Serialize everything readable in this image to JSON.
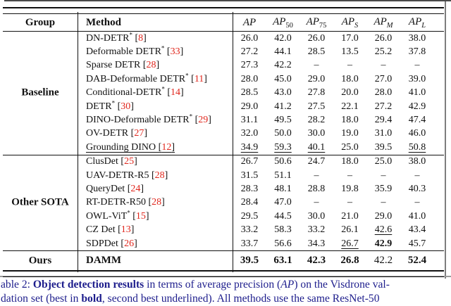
{
  "colors": {
    "rule": "#111111",
    "frame_gray": "#7d7d7d",
    "citation_red": "#e0261c",
    "caption_blue": "#1d1d8c",
    "text": "#111111"
  },
  "table": {
    "header": {
      "group": "Group",
      "method": "Method",
      "metrics": [
        {
          "label": "AP",
          "sub": ""
        },
        {
          "label": "AP",
          "sub": "50"
        },
        {
          "label": "AP",
          "sub": "75"
        },
        {
          "label": "AP",
          "sub": "S"
        },
        {
          "label": "AP",
          "sub": "M"
        },
        {
          "label": "AP",
          "sub": "L"
        }
      ]
    },
    "missing_value": "–",
    "sections": [
      {
        "group": "Baseline",
        "rows": [
          {
            "name": "DN-DETR",
            "star": true,
            "ref": "8",
            "underline": false,
            "bold": false,
            "values": [
              "26.0",
              "42.0",
              "26.0",
              "17.0",
              "26.0",
              "38.0"
            ],
            "styles": [
              "",
              "",
              "",
              "",
              "",
              ""
            ]
          },
          {
            "name": "Deformable DETR",
            "star": true,
            "ref": "33",
            "underline": false,
            "bold": false,
            "values": [
              "27.2",
              "44.1",
              "28.5",
              "13.5",
              "25.2",
              "37.8"
            ],
            "styles": [
              "",
              "",
              "",
              "",
              "",
              ""
            ]
          },
          {
            "name": "Sparse DETR",
            "star": false,
            "ref": "28",
            "underline": false,
            "bold": false,
            "values": [
              "27.3",
              "42.2",
              "–",
              "–",
              "–",
              "–"
            ],
            "styles": [
              "",
              "",
              "",
              "",
              "",
              ""
            ]
          },
          {
            "name": "DAB-Deformable DETR",
            "star": true,
            "ref": "11",
            "underline": false,
            "bold": false,
            "values": [
              "28.0",
              "45.0",
              "29.0",
              "18.0",
              "27.0",
              "39.0"
            ],
            "styles": [
              "",
              "",
              "",
              "",
              "",
              ""
            ]
          },
          {
            "name": "Conditional-DETR",
            "star": true,
            "ref": "14",
            "underline": false,
            "bold": false,
            "values": [
              "28.5",
              "43.0",
              "27.8",
              "20.0",
              "28.0",
              "41.0"
            ],
            "styles": [
              "",
              "",
              "",
              "",
              "",
              ""
            ]
          },
          {
            "name": "DETR",
            "star": true,
            "ref": "30",
            "underline": false,
            "bold": false,
            "values": [
              "29.0",
              "41.2",
              "27.5",
              "22.1",
              "27.2",
              "42.9"
            ],
            "styles": [
              "",
              "",
              "",
              "",
              "",
              ""
            ]
          },
          {
            "name": "DINO-Deformable DETR",
            "star": true,
            "ref": "29",
            "underline": false,
            "bold": false,
            "values": [
              "31.1",
              "49.5",
              "28.2",
              "18.0",
              "29.4",
              "47.4"
            ],
            "styles": [
              "",
              "",
              "",
              "",
              "",
              ""
            ]
          },
          {
            "name": "OV-DETR",
            "star": false,
            "ref": "27",
            "underline": false,
            "bold": false,
            "values": [
              "32.0",
              "50.0",
              "30.0",
              "19.0",
              "31.0",
              "46.0"
            ],
            "styles": [
              "",
              "",
              "",
              "",
              "",
              ""
            ]
          },
          {
            "name": "Grounding DINO",
            "star": false,
            "ref": "12",
            "underline": true,
            "bold": false,
            "values": [
              "34.9",
              "59.3",
              "40.1",
              "25.0",
              "39.5",
              "50.8"
            ],
            "styles": [
              "u",
              "u",
              "u",
              "",
              "",
              "u"
            ]
          }
        ]
      },
      {
        "group": "Other SOTA",
        "rows": [
          {
            "name": "ClusDet",
            "star": false,
            "ref": "25",
            "underline": false,
            "bold": false,
            "values": [
              "26.7",
              "50.6",
              "24.7",
              "18.0",
              "25.0",
              "38.0"
            ],
            "styles": [
              "",
              "",
              "",
              "",
              "",
              ""
            ]
          },
          {
            "name": "UAV-DETR-R5",
            "star": false,
            "ref": "28",
            "underline": false,
            "bold": false,
            "values": [
              "31.5",
              "51.1",
              "–",
              "–",
              "–",
              "–"
            ],
            "styles": [
              "",
              "",
              "",
              "",
              "",
              ""
            ]
          },
          {
            "name": "QueryDet",
            "star": false,
            "ref": "24",
            "underline": false,
            "bold": false,
            "values": [
              "28.3",
              "48.1",
              "28.8",
              "19.8",
              "35.9",
              "40.3"
            ],
            "styles": [
              "",
              "",
              "",
              "",
              "",
              ""
            ]
          },
          {
            "name": "RT-DETR-R50",
            "star": false,
            "ref": "28",
            "underline": false,
            "bold": false,
            "values": [
              "28.4",
              "47.0",
              "–",
              "–",
              "–",
              "–"
            ],
            "styles": [
              "",
              "",
              "",
              "",
              "",
              ""
            ]
          },
          {
            "name": "OWL-ViT",
            "star": true,
            "ref": "15",
            "underline": false,
            "bold": false,
            "values": [
              "29.5",
              "44.5",
              "30.0",
              "21.0",
              "29.0",
              "41.0"
            ],
            "styles": [
              "",
              "",
              "",
              "",
              "",
              ""
            ]
          },
          {
            "name": "CZ Det",
            "star": false,
            "ref": "13",
            "underline": false,
            "bold": false,
            "values": [
              "33.2",
              "58.3",
              "33.2",
              "26.1",
              "42.6",
              "43.4"
            ],
            "styles": [
              "",
              "",
              "",
              "",
              "u",
              ""
            ]
          },
          {
            "name": "SDPDet",
            "star": false,
            "ref": "26",
            "underline": false,
            "bold": false,
            "values": [
              "33.7",
              "56.6",
              "34.3",
              "26.7",
              "42.9",
              "45.7"
            ],
            "styles": [
              "",
              "",
              "",
              "u",
              "b",
              ""
            ]
          }
        ]
      },
      {
        "group": "Ours",
        "rows": [
          {
            "name": "DAMM",
            "star": false,
            "ref": "",
            "underline": false,
            "bold": true,
            "values": [
              "39.5",
              "63.1",
              "42.3",
              "26.8",
              "42.2",
              "52.4"
            ],
            "styles": [
              "b",
              "b",
              "b",
              "b",
              "",
              "b"
            ]
          }
        ]
      }
    ]
  },
  "caption": {
    "line1": [
      {
        "t": "able 2: "
      },
      {
        "t": "Object detection results",
        "b": true
      },
      {
        "t": " in terms of average precision ("
      },
      {
        "t": "AP",
        "i": true
      },
      {
        "t": ") on the Visdrone val-"
      }
    ],
    "line2": [
      {
        "t": "dation set (best in "
      },
      {
        "t": "bold",
        "b": true
      },
      {
        "t": ", second best underlined).  All methods use the same ResNet-50"
      }
    ]
  }
}
